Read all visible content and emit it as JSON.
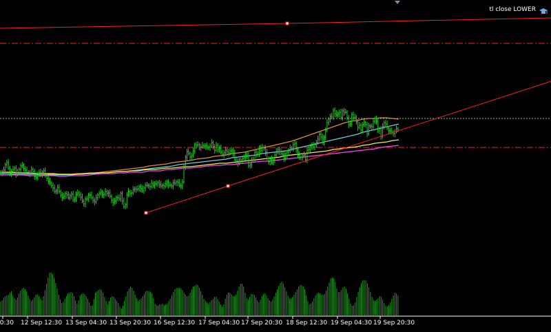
{
  "indicator_label": "tl close LOWER",
  "icons": {
    "label_icon": "graduation-cap-icon",
    "top_marker": "triangle-down-icon"
  },
  "colors": {
    "background": "#000000",
    "price_bars": "#22cc22",
    "volume_bars": "#17a317",
    "trendline": "#ff1f1f",
    "level_lines": "#ff2222",
    "current_price_line": "#7cd47c",
    "ma_pink": "#ff44ff",
    "ma_yellow": "#f2f24a",
    "ma_cyan": "#66d3e6",
    "ma_orange": "#e88a3a",
    "axis_text": "#ffffff"
  },
  "x_axis": {
    "labels": [
      "20:30",
      "12 Sep 12:30",
      "13 Sep 04:30",
      "13 Sep 20:30",
      "16 Sep 12:30",
      "17 Sep 04:30",
      "17 Sep 20:30",
      "18 Sep 12:30",
      "19 Sep 04:30",
      "19 Sep 20:30"
    ]
  },
  "chart_data": {
    "type": "line",
    "price": [
      250,
      251,
      247,
      239,
      236,
      244,
      252,
      249,
      246,
      244,
      253,
      250,
      246,
      241,
      240,
      245,
      247,
      250,
      252,
      251,
      246,
      249,
      256,
      258,
      252,
      250,
      254,
      250,
      248,
      255,
      259,
      263,
      266,
      269,
      273,
      278,
      277,
      272,
      278,
      283,
      287,
      285,
      281,
      283,
      287,
      284,
      282,
      290,
      288,
      282,
      280,
      283,
      286,
      292,
      296,
      289,
      289,
      283,
      283,
      287,
      291,
      293,
      287,
      283,
      281,
      279,
      283,
      282,
      278,
      281,
      280,
      285,
      291,
      294,
      292,
      287,
      287,
      289,
      281,
      292,
      300,
      297,
      283,
      278,
      281,
      280,
      275,
      274,
      275,
      274,
      271,
      274,
      277,
      273,
      269,
      269,
      270,
      271,
      266,
      269,
      267,
      267,
      265,
      268,
      270,
      269,
      270,
      267,
      264,
      269,
      269,
      270,
      265,
      266,
      264,
      265,
      269,
      270,
      264,
      243,
      228,
      220,
      223,
      228,
      226,
      219,
      210,
      211,
      210,
      214,
      213,
      211,
      212,
      212,
      214,
      214,
      212,
      207,
      213,
      218,
      211,
      217,
      215,
      221,
      224,
      222,
      218,
      220,
      222,
      219,
      218,
      222,
      232,
      234,
      237,
      234,
      232,
      230,
      229,
      224,
      226,
      241,
      239,
      232,
      232,
      221,
      224,
      224,
      214,
      218,
      214,
      215,
      221,
      230,
      235,
      231,
      236,
      232,
      225,
      220,
      217,
      220,
      223,
      224,
      230,
      226,
      221,
      219,
      215,
      215,
      210,
      208,
      218,
      225,
      229,
      228,
      226,
      225,
      232,
      218,
      217,
      212,
      211,
      214,
      210,
      207,
      202,
      195,
      199,
      207,
      199,
      189,
      178,
      173,
      169,
      170,
      160,
      165,
      167,
      165,
      163,
      171,
      161,
      163,
      163,
      171,
      181,
      180,
      166,
      171,
      170,
      177,
      185,
      182,
      189,
      181,
      178,
      181,
      194,
      183,
      183,
      184,
      176,
      172,
      176,
      190,
      187,
      198,
      184,
      178,
      180,
      186,
      190,
      190,
      192,
      194,
      191,
      187,
      188
    ],
    "volume": [
      20,
      22,
      26,
      28,
      29,
      30,
      33,
      35,
      29,
      25,
      23,
      26,
      32,
      36,
      39,
      40,
      38,
      35,
      29,
      24,
      21,
      23,
      26,
      30,
      31,
      28,
      24,
      22,
      28,
      37,
      46,
      55,
      62,
      62,
      60,
      55,
      47,
      39,
      30,
      23,
      18,
      20,
      24,
      28,
      32,
      33,
      34,
      33,
      28,
      22,
      17,
      22,
      29,
      31,
      32,
      31,
      28,
      24,
      19,
      14,
      15,
      24,
      33,
      35,
      37,
      38,
      37,
      33,
      27,
      21,
      16,
      21,
      26,
      28,
      27,
      24,
      21,
      18,
      13,
      10,
      14,
      21,
      28,
      35,
      39,
      42,
      40,
      36,
      30,
      25,
      21,
      23,
      25,
      28,
      31,
      35,
      36,
      35,
      34,
      32,
      25,
      17,
      15,
      14,
      16,
      16,
      17,
      15,
      16,
      17,
      21,
      24,
      29,
      34,
      38,
      40,
      40,
      40,
      39,
      37,
      33,
      30,
      28,
      29,
      33,
      38,
      42,
      43,
      45,
      44,
      40,
      35,
      30,
      24,
      21,
      19,
      17,
      19,
      22,
      24,
      27,
      27,
      24,
      20,
      16,
      13,
      16,
      24,
      30,
      33,
      33,
      31,
      28,
      28,
      30,
      36,
      42,
      46,
      46,
      42,
      33,
      25,
      23,
      27,
      31,
      31,
      30,
      26,
      22,
      19,
      23,
      28,
      31,
      32,
      29,
      25,
      22,
      20,
      23,
      28,
      33,
      38,
      43,
      47,
      49,
      46,
      41,
      35,
      29,
      25,
      24,
      27,
      30,
      34,
      38,
      42,
      44,
      44,
      42,
      38,
      29,
      21,
      16,
      17,
      20,
      25,
      29,
      32,
      33,
      32,
      30,
      30,
      31,
      36,
      42,
      48,
      54,
      55,
      54,
      48,
      39,
      34,
      34,
      37,
      41,
      42,
      39,
      32,
      24,
      17,
      14,
      15,
      19,
      27,
      34,
      41,
      47,
      51,
      51,
      51,
      47,
      41,
      34,
      27,
      22,
      21,
      23,
      25,
      28,
      27,
      23,
      18,
      14,
      13,
      15,
      19,
      24,
      29,
      33,
      32,
      29
    ],
    "ma_pink": [
      254,
      254,
      254,
      254,
      254,
      255,
      255,
      255,
      255,
      255,
      256,
      256,
      255,
      255,
      255,
      254,
      253,
      252,
      252,
      252,
      251,
      251,
      250,
      250,
      250,
      248,
      248,
      248,
      246,
      246,
      245,
      244,
      244,
      243,
      242,
      241,
      240,
      240,
      239,
      239,
      238,
      237,
      236,
      235,
      234,
      234,
      233,
      232,
      231,
      230,
      229,
      228,
      227,
      226,
      225,
      224,
      223,
      222,
      221,
      220,
      219,
      218,
      217,
      216,
      214,
      213,
      212,
      211
    ],
    "ma_yellow": [
      250,
      250,
      250,
      251,
      251,
      251,
      252,
      252,
      252,
      252,
      253,
      253,
      253,
      253,
      252,
      252,
      251,
      251,
      251,
      250,
      249,
      249,
      248,
      248,
      247,
      246,
      246,
      245,
      244,
      244,
      243,
      242,
      242,
      241,
      240,
      239,
      238,
      237,
      237,
      236,
      235,
      234,
      233,
      232,
      231,
      230,
      229,
      228,
      226,
      225,
      224,
      223,
      222,
      221,
      220,
      219,
      217,
      216,
      215,
      214,
      213,
      211,
      210,
      208,
      207,
      206,
      204,
      203
    ],
    "ma_cyan": [
      252,
      252,
      253,
      253,
      253,
      253,
      253,
      254,
      254,
      254,
      254,
      254,
      254,
      253,
      253,
      252,
      252,
      251,
      251,
      250,
      249,
      249,
      248,
      247,
      246,
      245,
      244,
      243,
      242,
      241,
      239,
      238,
      237,
      236,
      235,
      234,
      233,
      232,
      231,
      229,
      228,
      227,
      226,
      225,
      223,
      222,
      221,
      220,
      219,
      217,
      215,
      213,
      211,
      209,
      207,
      205,
      203,
      201,
      199,
      197,
      195,
      192,
      190,
      188,
      186,
      184,
      182,
      180
    ],
    "ma_orange": [
      250,
      250,
      251,
      251,
      251,
      252,
      252,
      252,
      253,
      253,
      253,
      253,
      253,
      252,
      252,
      251,
      251,
      250,
      249,
      248,
      247,
      246,
      245,
      244,
      243,
      241,
      240,
      239,
      238,
      236,
      235,
      234,
      233,
      231,
      230,
      229,
      227,
      226,
      225,
      223,
      222,
      221,
      219,
      217,
      215,
      213,
      211,
      209,
      207,
      205,
      202,
      199,
      196,
      193,
      190,
      187,
      184,
      181,
      178,
      176,
      175,
      173,
      172,
      172,
      171,
      171,
      172,
      173
    ],
    "trendline_points": [
      [
        212,
        309
      ],
      [
        331,
        270
      ],
      [
        800,
        118
      ]
    ],
    "upper_trendline": [
      [
        0,
        41
      ],
      [
        417,
        34
      ],
      [
        800,
        26
      ]
    ],
    "anchor_points": [
      [
        212,
        309
      ],
      [
        331,
        270
      ],
      [
        417,
        34
      ]
    ],
    "levels": {
      "upper_dashed": 63,
      "lower_dashed": 214,
      "current_price": 172
    }
  }
}
